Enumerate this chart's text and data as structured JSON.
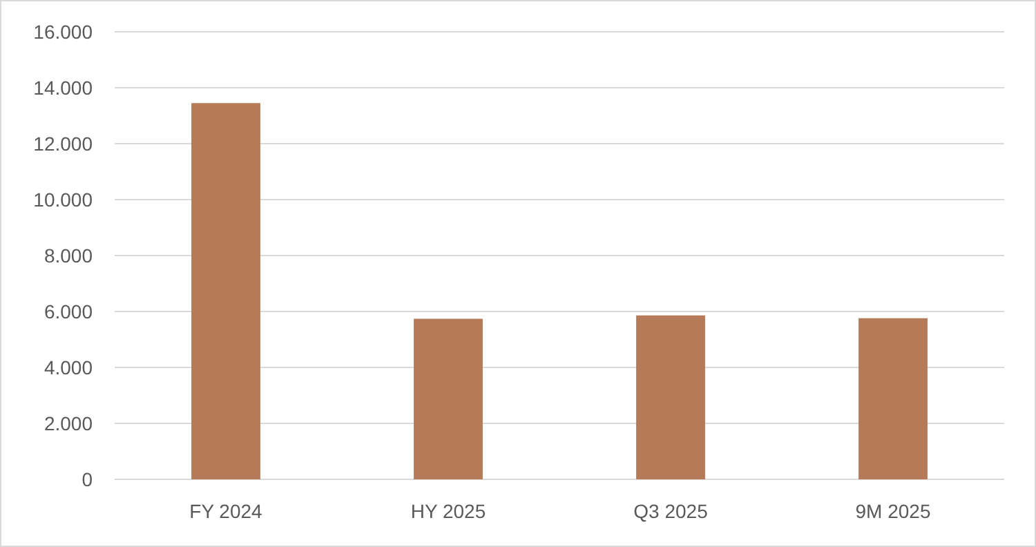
{
  "chart_data": {
    "type": "bar",
    "categories": [
      "FY 2024",
      "HY 2025",
      "Q3 2025",
      "9M 2025"
    ],
    "values": [
      13450,
      5740,
      5860,
      5760
    ],
    "color": "#b57a57",
    "ylim": [
      0,
      16000
    ],
    "yticks": [
      {
        "value": 0,
        "label": "0"
      },
      {
        "value": 2000,
        "label": "2.000"
      },
      {
        "value": 4000,
        "label": "4.000"
      },
      {
        "value": 6000,
        "label": "6.000"
      },
      {
        "value": 8000,
        "label": "8.000"
      },
      {
        "value": 10000,
        "label": "10.000"
      },
      {
        "value": 12000,
        "label": "12.000"
      },
      {
        "value": 14000,
        "label": "14.000"
      },
      {
        "value": 16000,
        "label": "16.000"
      }
    ],
    "grid": true
  }
}
